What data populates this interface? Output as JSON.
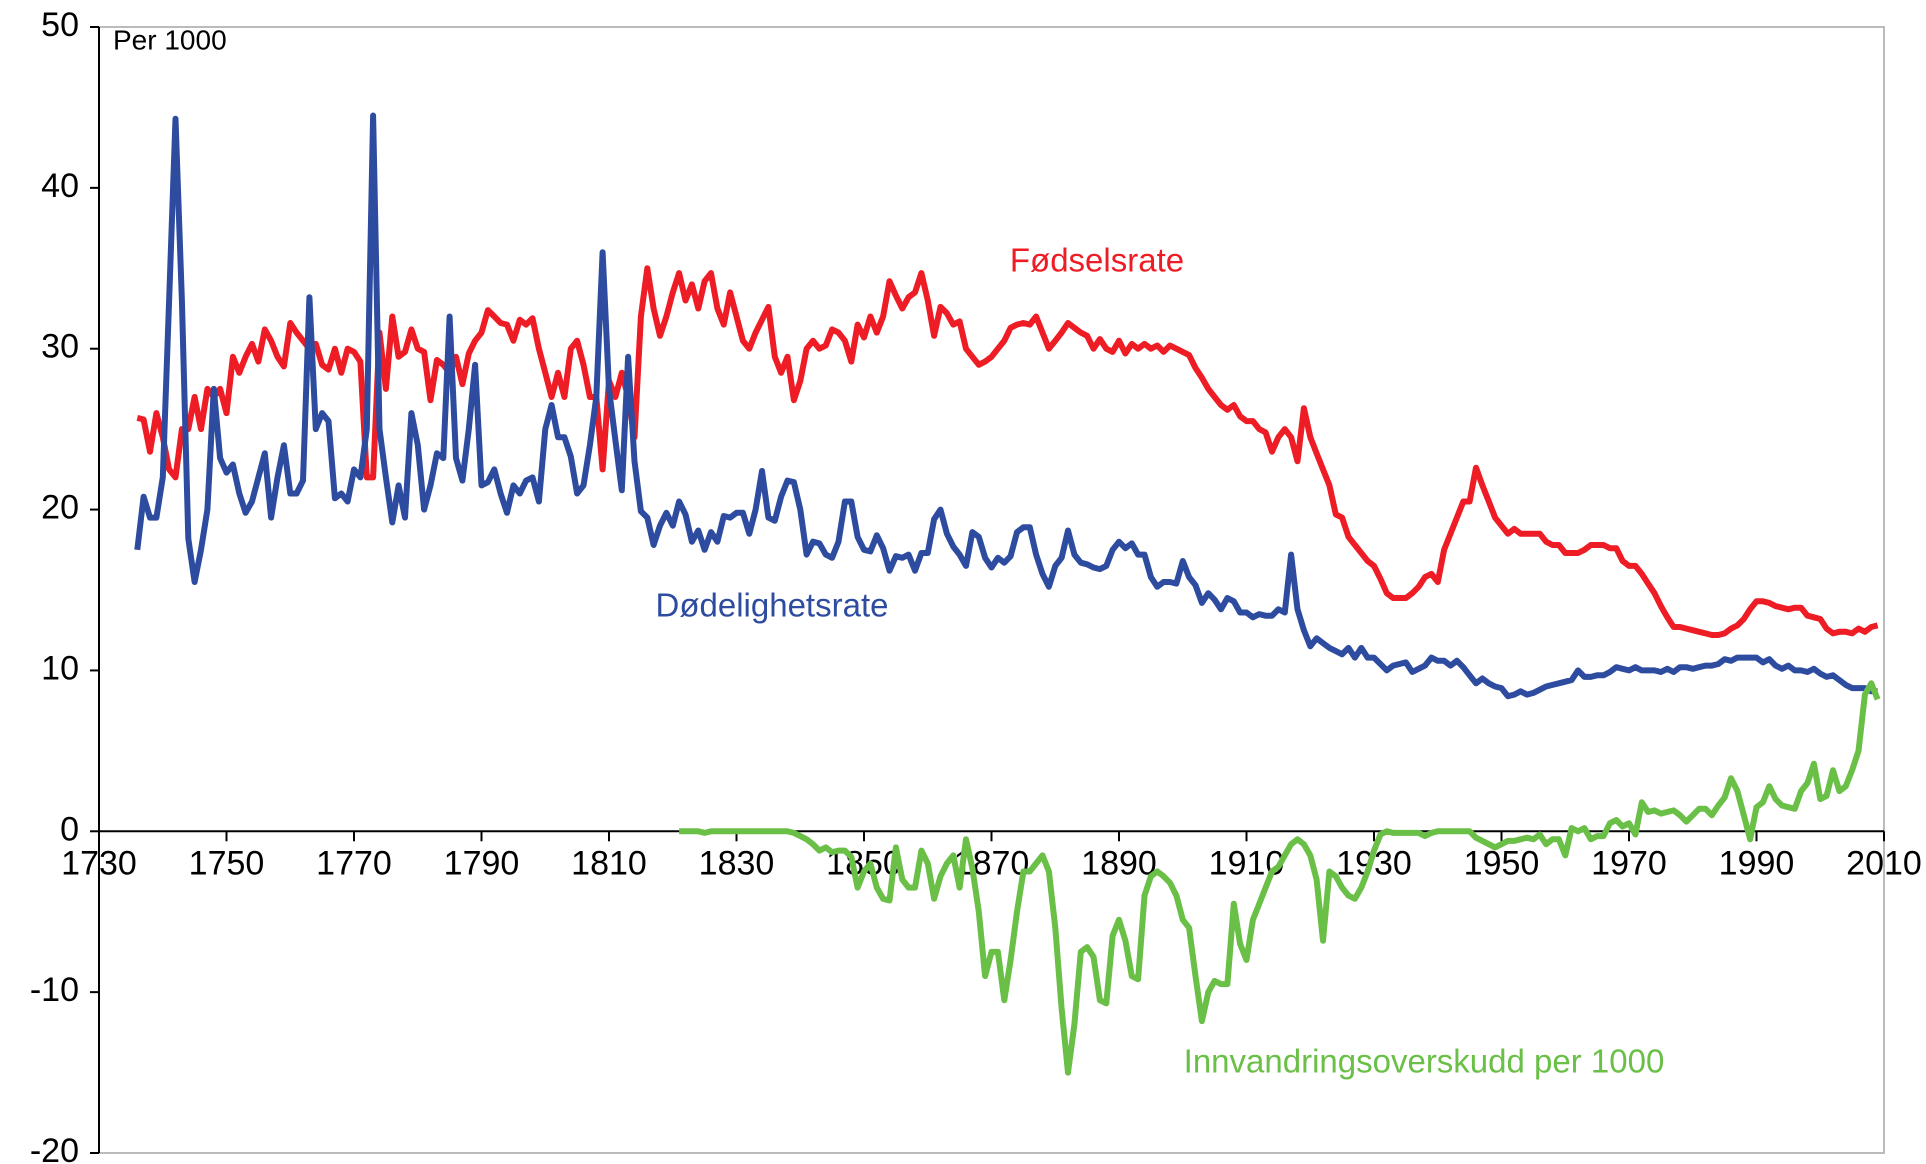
{
  "chart_data": {
    "type": "line",
    "annotation": "Per 1000",
    "x": [
      1736,
      1737,
      1738,
      1739,
      1740,
      1741,
      1742,
      1743,
      1744,
      1745,
      1746,
      1747,
      1748,
      1749,
      1750,
      1751,
      1752,
      1753,
      1754,
      1755,
      1756,
      1757,
      1758,
      1759,
      1760,
      1761,
      1762,
      1763,
      1764,
      1765,
      1766,
      1767,
      1768,
      1769,
      1770,
      1771,
      1772,
      1773,
      1774,
      1775,
      1776,
      1777,
      1778,
      1779,
      1780,
      1781,
      1782,
      1783,
      1784,
      1785,
      1786,
      1787,
      1788,
      1789,
      1790,
      1791,
      1792,
      1793,
      1794,
      1795,
      1796,
      1797,
      1798,
      1799,
      1800,
      1801,
      1802,
      1803,
      1804,
      1805,
      1806,
      1807,
      1808,
      1809,
      1810,
      1811,
      1812,
      1813,
      1814,
      1815,
      1816,
      1817,
      1818,
      1819,
      1820,
      1821,
      1822,
      1823,
      1824,
      1825,
      1826,
      1827,
      1828,
      1829,
      1830,
      1831,
      1832,
      1833,
      1834,
      1835,
      1836,
      1837,
      1838,
      1839,
      1840,
      1841,
      1842,
      1843,
      1844,
      1845,
      1846,
      1847,
      1848,
      1849,
      1850,
      1851,
      1852,
      1853,
      1854,
      1855,
      1856,
      1857,
      1858,
      1859,
      1860,
      1861,
      1862,
      1863,
      1864,
      1865,
      1866,
      1867,
      1868,
      1869,
      1870,
      1871,
      1872,
      1873,
      1874,
      1875,
      1876,
      1877,
      1878,
      1879,
      1880,
      1881,
      1882,
      1883,
      1884,
      1885,
      1886,
      1887,
      1888,
      1889,
      1890,
      1891,
      1892,
      1893,
      1894,
      1895,
      1896,
      1897,
      1898,
      1899,
      1900,
      1901,
      1902,
      1903,
      1904,
      1905,
      1906,
      1907,
      1908,
      1909,
      1910,
      1911,
      1912,
      1913,
      1914,
      1915,
      1916,
      1917,
      1918,
      1919,
      1920,
      1921,
      1922,
      1923,
      1924,
      1925,
      1926,
      1927,
      1928,
      1929,
      1930,
      1931,
      1932,
      1933,
      1934,
      1935,
      1936,
      1937,
      1938,
      1939,
      1940,
      1941,
      1942,
      1943,
      1944,
      1945,
      1946,
      1947,
      1948,
      1949,
      1950,
      1951,
      1952,
      1953,
      1954,
      1955,
      1956,
      1957,
      1958,
      1959,
      1960,
      1961,
      1962,
      1963,
      1964,
      1965,
      1966,
      1967,
      1968,
      1969,
      1970,
      1971,
      1972,
      1973,
      1974,
      1975,
      1976,
      1977,
      1978,
      1979,
      1980,
      1981,
      1982,
      1983,
      1984,
      1985,
      1986,
      1987,
      1988,
      1989,
      1990,
      1991,
      1992,
      1993,
      1994,
      1995,
      1996,
      1997,
      1998,
      1999,
      2000,
      2001,
      2002,
      2003,
      2004,
      2005,
      2006,
      2007,
      2008,
      2009
    ],
    "series": [
      {
        "name": "Fødselsrate",
        "color": "#ee1c25",
        "values": [
          25.7,
          25.6,
          23.6,
          26,
          24.5,
          22.5,
          22,
          25,
          25,
          27,
          25,
          27.5,
          27,
          27.5,
          26,
          29.5,
          28.5,
          29.5,
          30.3,
          29.2,
          31.2,
          30.5,
          29.5,
          28.9,
          31.6,
          31,
          30.5,
          30,
          30.3,
          29,
          28.7,
          30,
          28.5,
          30,
          29.8,
          29.2,
          22,
          22,
          31,
          27.5,
          32,
          29.5,
          29.8,
          31.2,
          30,
          29.8,
          26.8,
          29.3,
          29,
          28.5,
          29.5,
          27.8,
          29.7,
          30.5,
          31,
          32.4,
          32,
          31.6,
          31.5,
          30.5,
          31.8,
          31.5,
          31.9,
          30,
          28.5,
          27,
          28.5,
          27,
          30,
          30.5,
          29,
          27,
          27,
          22.5,
          28,
          27,
          28.5,
          27,
          24.5,
          32,
          35,
          32.5,
          30.8,
          32,
          33.5,
          34.7,
          33,
          34,
          32.5,
          34.2,
          34.7,
          32.5,
          31.5,
          33.5,
          32,
          30.5,
          30,
          31,
          31.8,
          32.6,
          29.5,
          28.5,
          29.5,
          26.8,
          28,
          30,
          30.5,
          30,
          30.2,
          31.2,
          31,
          30.5,
          29.2,
          31.5,
          30.7,
          32,
          31,
          32,
          34.2,
          33.3,
          32.5,
          33.2,
          33.5,
          34.7,
          33,
          30.8,
          32.6,
          32.2,
          31.5,
          31.7,
          30,
          29.5,
          29,
          29.2,
          29.5,
          30,
          30.5,
          31.3,
          31.5,
          31.6,
          31.5,
          32,
          31,
          30,
          30.5,
          31,
          31.6,
          31.3,
          31,
          30.8,
          30,
          30.6,
          30,
          29.8,
          30.5,
          29.7,
          30.3,
          30,
          30.3,
          30,
          30.2,
          29.8,
          30.2,
          30,
          29.8,
          29.6,
          28.8,
          28.2,
          27.5,
          27,
          26.5,
          26.2,
          26.5,
          25.8,
          25.5,
          25.5,
          25,
          24.8,
          23.6,
          24.5,
          25,
          24.5,
          23,
          26.3,
          24.5,
          23.5,
          22.5,
          21.5,
          19.7,
          19.5,
          18.3,
          17.8,
          17.3,
          16.8,
          16.5,
          15.7,
          14.8,
          14.5,
          14.5,
          14.5,
          14.8,
          15.2,
          15.8,
          16,
          15.5,
          17.5,
          18.5,
          19.5,
          20.5,
          20.5,
          22.6,
          21.5,
          20.5,
          19.5,
          19,
          18.5,
          18.8,
          18.5,
          18.5,
          18.5,
          18.5,
          18,
          17.8,
          17.8,
          17.3,
          17.3,
          17.3,
          17.5,
          17.8,
          17.8,
          17.8,
          17.6,
          17.6,
          16.8,
          16.5,
          16.5,
          16,
          15.4,
          14.8,
          14,
          13.3,
          12.7,
          12.7,
          12.6,
          12.5,
          12.4,
          12.3,
          12.2,
          12.2,
          12.3,
          12.6,
          12.8,
          13.2,
          13.8,
          14.3,
          14.3,
          14.2,
          14,
          13.9,
          13.8,
          13.9,
          13.9,
          13.4,
          13.3,
          13.2,
          12.6,
          12.3,
          12.4,
          12.4,
          12.3,
          12.6,
          12.4,
          12.7,
          12.8
        ]
      },
      {
        "name": "Dødelighetsrate",
        "color": "#2e4c9f",
        "values": [
          17.5,
          20.8,
          19.5,
          19.5,
          22,
          33,
          44.3,
          33,
          18.2,
          15.5,
          17.5,
          20,
          27.5,
          23.2,
          22.3,
          22.8,
          21,
          19.8,
          20.5,
          22,
          23.5,
          19.5,
          22,
          24,
          21,
          21,
          21.8,
          33.2,
          25,
          26,
          25.5,
          20.7,
          21,
          20.5,
          22.5,
          22,
          25,
          44.5,
          25,
          22,
          19.2,
          21.5,
          19.5,
          26,
          24,
          20,
          21.5,
          23.5,
          23.2,
          32,
          23.2,
          21.8,
          25,
          29,
          21.5,
          21.7,
          22.5,
          21,
          19.8,
          21.5,
          21,
          21.8,
          22,
          20.5,
          25,
          26.5,
          24.5,
          24.5,
          23.3,
          21,
          21.5,
          24,
          27,
          36,
          27.5,
          24.3,
          21.2,
          29.5,
          23,
          19.9,
          19.5,
          17.8,
          19,
          19.8,
          19,
          20.5,
          19.7,
          18,
          18.7,
          17.5,
          18.6,
          18,
          19.6,
          19.5,
          19.8,
          19.8,
          18.5,
          20,
          22.4,
          19.5,
          19.3,
          20.8,
          21.8,
          21.7,
          20,
          17.2,
          18,
          17.9,
          17.2,
          17,
          18,
          20.5,
          20.5,
          18.3,
          17.5,
          17.4,
          18.4,
          17.6,
          16.2,
          17.1,
          17,
          17.2,
          16.2,
          17.3,
          17.3,
          19.4,
          20,
          18.5,
          17.7,
          17.2,
          16.5,
          18.6,
          18.3,
          17,
          16.4,
          17,
          16.7,
          17.1,
          18.6,
          18.9,
          18.9,
          17.2,
          16,
          15.2,
          16.5,
          17,
          18.7,
          17.2,
          16.7,
          16.6,
          16.4,
          16.3,
          16.5,
          17.5,
          18,
          17.6,
          17.9,
          17.2,
          17.2,
          15.8,
          15.2,
          15.5,
          15.5,
          15.4,
          16.8,
          15.8,
          15.3,
          14.2,
          14.8,
          14.4,
          13.8,
          14.5,
          14.3,
          13.6,
          13.6,
          13.3,
          13.5,
          13.4,
          13.4,
          13.8,
          13.6,
          17.2,
          13.8,
          12.5,
          11.5,
          12,
          11.7,
          11.4,
          11.2,
          11,
          11.4,
          10.8,
          11.4,
          10.8,
          10.8,
          10.4,
          10,
          10.3,
          10.4,
          10.5,
          9.9,
          10.1,
          10.3,
          10.8,
          10.6,
          10.6,
          10.3,
          10.6,
          10.2,
          9.7,
          9.2,
          9.5,
          9.2,
          9,
          8.9,
          8.4,
          8.5,
          8.7,
          8.5,
          8.6,
          8.8,
          9,
          9.1,
          9.2,
          9.3,
          9.4,
          10,
          9.6,
          9.6,
          9.7,
          9.7,
          9.9,
          10.2,
          10.1,
          10,
          10.2,
          10,
          10,
          10,
          9.9,
          10.1,
          9.9,
          10.2,
          10.2,
          10.1,
          10.2,
          10.3,
          10.3,
          10.4,
          10.7,
          10.6,
          10.8,
          10.8,
          10.8,
          10.8,
          10.5,
          10.7,
          10.3,
          10.1,
          10.3,
          10,
          10,
          9.9,
          10.1,
          9.8,
          9.6,
          9.7,
          9.4,
          9.1,
          8.9,
          8.9,
          8.9,
          8.7,
          8.7
        ]
      },
      {
        "name": "Innvandringsoverskudd per 1000",
        "color": "#6abf47",
        "values": [
          null,
          null,
          null,
          null,
          null,
          null,
          null,
          null,
          null,
          null,
          null,
          null,
          null,
          null,
          null,
          null,
          null,
          null,
          null,
          null,
          null,
          null,
          null,
          null,
          null,
          null,
          null,
          null,
          null,
          null,
          null,
          null,
          null,
          null,
          null,
          null,
          null,
          null,
          null,
          null,
          null,
          null,
          null,
          null,
          null,
          null,
          null,
          null,
          null,
          null,
          null,
          null,
          null,
          null,
          null,
          null,
          null,
          null,
          null,
          null,
          null,
          null,
          null,
          null,
          null,
          null,
          null,
          null,
          null,
          null,
          null,
          null,
          null,
          null,
          null,
          null,
          null,
          null,
          null,
          null,
          null,
          null,
          null,
          null,
          null,
          0,
          0,
          0,
          0,
          -0.1,
          0,
          0,
          0,
          0,
          0,
          0,
          0,
          0,
          0,
          0,
          0,
          0,
          0,
          -0.1,
          -0.3,
          -0.5,
          -0.8,
          -1.2,
          -1,
          -1.3,
          -1.2,
          -1.2,
          -1.6,
          -3.5,
          -2.5,
          -2,
          -3.5,
          -4.2,
          -4.3,
          -1,
          -3,
          -3.5,
          -3.5,
          -1.2,
          -2,
          -4.2,
          -2.8,
          -2,
          -1.5,
          -3.5,
          -0.5,
          -2.3,
          -5,
          -9,
          -7.5,
          -7.5,
          -10.5,
          -8,
          -5,
          -2.5,
          -2.5,
          -2,
          -1.5,
          -2.5,
          -6,
          -11,
          -15,
          -12,
          -7.5,
          -7.2,
          -7.8,
          -10.5,
          -10.7,
          -6.5,
          -5.5,
          -6.8,
          -9,
          -9.2,
          -4,
          -2.8,
          -2.5,
          -2.8,
          -3.2,
          -4,
          -5.5,
          -6,
          -9,
          -11.8,
          -10,
          -9.3,
          -9.5,
          -9.5,
          -4.5,
          -7,
          -8,
          -5.5,
          -4.5,
          -3.5,
          -2.5,
          -2.2,
          -1.5,
          -0.8,
          -0.5,
          -0.8,
          -1.5,
          -3,
          -6.8,
          -2.5,
          -2.8,
          -3.5,
          -4,
          -4.2,
          -3.5,
          -2.5,
          -1.2,
          -0.2,
          0,
          -0.1,
          -0.1,
          -0.1,
          -0.1,
          -0.1,
          -0.3,
          -0.1,
          0,
          0,
          0,
          0,
          0,
          0,
          -0.4,
          -0.6,
          -0.8,
          -1,
          -0.8,
          -0.6,
          -0.6,
          -0.5,
          -0.4,
          -0.5,
          -0.2,
          -0.8,
          -0.5,
          -0.5,
          -1.5,
          0.2,
          0,
          0.2,
          -0.5,
          -0.3,
          -0.3,
          0.5,
          0.7,
          0.3,
          0.5,
          -0.2,
          1.8,
          1.2,
          1.3,
          1.1,
          1.2,
          1.3,
          1,
          0.6,
          1,
          1.4,
          1.4,
          1,
          1.6,
          2.1,
          3.3,
          2.5,
          1,
          -0.5,
          1.5,
          1.8,
          2.8,
          2,
          1.6,
          1.5,
          1.4,
          2.5,
          3,
          4.2,
          2,
          2.2,
          3.8,
          2.5,
          2.8,
          3.8,
          5,
          8.5,
          9.2,
          8.2
        ]
      }
    ],
    "xlim": [
      1730,
      2010
    ],
    "xticks": [
      1730,
      1750,
      1770,
      1790,
      1810,
      1830,
      1850,
      1870,
      1890,
      1910,
      1930,
      1950,
      1970,
      1990,
      2010
    ],
    "ylim": [
      -20,
      50
    ],
    "yticks": [
      -20,
      -10,
      0,
      10,
      20,
      30,
      40,
      50
    ],
    "grid": false
  }
}
